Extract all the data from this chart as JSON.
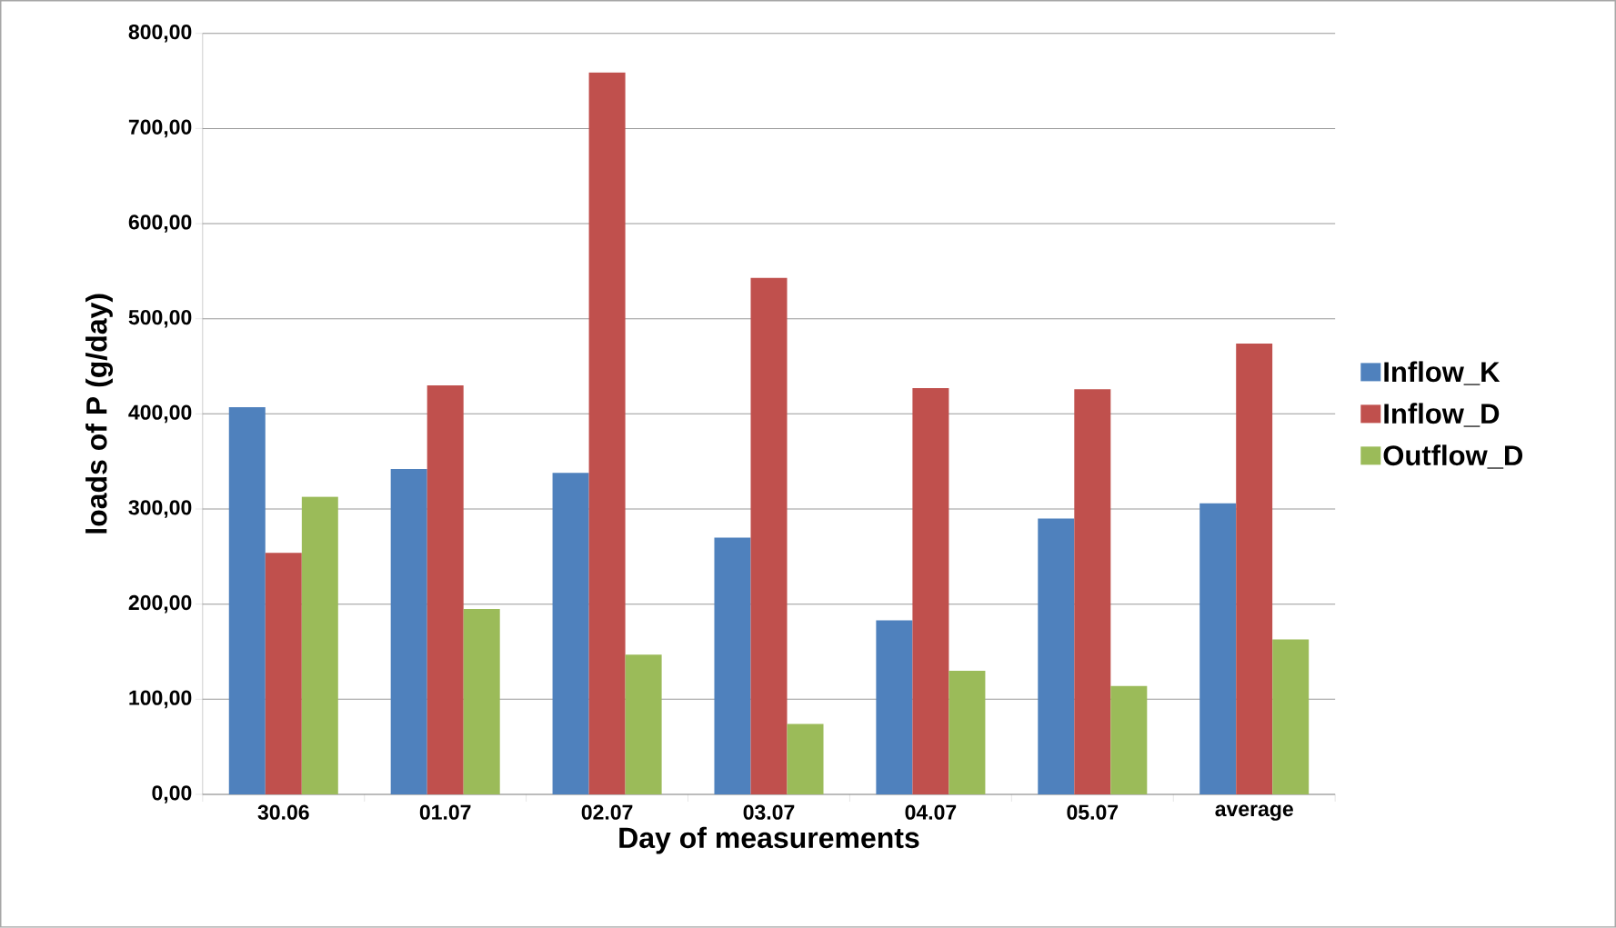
{
  "chart_data": {
    "type": "bar",
    "xlabel": "Day of measurements",
    "ylabel": "loads of P (g/day)",
    "categories": [
      "30.06",
      "01.07",
      "02.07",
      "03.07",
      "04.07",
      "05.07",
      "average"
    ],
    "series": [
      {
        "name": "Inflow_K",
        "color": "#4f81bd",
        "values": [
          407,
          342,
          338,
          270,
          183,
          290,
          306
        ]
      },
      {
        "name": "Inflow_D",
        "color": "#c0504d",
        "values": [
          254,
          430,
          759,
          543,
          427,
          426,
          474
        ]
      },
      {
        "name": "Outflow_D",
        "color": "#9bbb59",
        "values": [
          313,
          195,
          147,
          74,
          130,
          114,
          163
        ]
      }
    ],
    "ylim": [
      0,
      800
    ],
    "yticks": [
      {
        "value": 0,
        "label": "0,00"
      },
      {
        "value": 100,
        "label": "100,00"
      },
      {
        "value": 200,
        "label": "200,00"
      },
      {
        "value": 300,
        "label": "300,00"
      },
      {
        "value": 400,
        "label": "400,00"
      },
      {
        "value": 500,
        "label": "500,00"
      },
      {
        "value": 600,
        "label": "600,00"
      },
      {
        "value": 700,
        "label": "700,00"
      },
      {
        "value": 800,
        "label": "800,00"
      }
    ],
    "grid": "y",
    "legend": "right"
  }
}
